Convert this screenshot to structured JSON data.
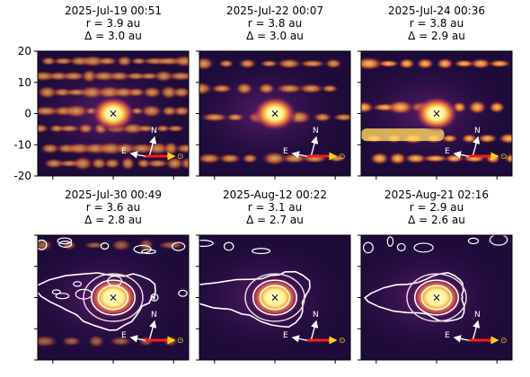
{
  "chart_data": {
    "type": "heatmap",
    "ylim": [
      -20,
      20
    ],
    "yticks": [
      20,
      10,
      0,
      -10,
      -20
    ],
    "compass": {
      "north": "N",
      "east": "E",
      "sun": "⊙"
    },
    "center_marker": "×",
    "colors": {
      "background": "#1e0b3a",
      "mid": "#8a2a6c",
      "glow": "#f59a30",
      "core": "#fff59a",
      "contour": "#ffffff",
      "sun_arrow": "#ff1a1a",
      "sun_arrow_head": "#ffd21a"
    },
    "panels": [
      {
        "date": "2025-Jul-19 00:51",
        "r": "r = 3.9 au",
        "delta": "Δ = 3.0 au",
        "contours": false,
        "star_trails": "dense"
      },
      {
        "date": "2025-Jul-22 00:07",
        "r": "r = 3.8 au",
        "delta": "Δ = 3.0 au",
        "contours": false,
        "star_trails": "moderate"
      },
      {
        "date": "2025-Jul-24 00:36",
        "r": "r = 3.8 au",
        "delta": "Δ = 2.9 au",
        "contours": false,
        "star_trails": "bright"
      },
      {
        "date": "2025-Jul-30 00:49",
        "r": "r = 3.6 au",
        "delta": "Δ = 2.8 au",
        "contours": true,
        "star_trails": "faint"
      },
      {
        "date": "2025-Aug-12 00:22",
        "r": "r = 3.1 au",
        "delta": "Δ = 2.7 au",
        "contours": true,
        "star_trails": "none"
      },
      {
        "date": "2025-Aug-21 02:16",
        "r": "r = 2.9 au",
        "delta": "Δ = 2.6 au",
        "contours": true,
        "star_trails": "none"
      }
    ]
  }
}
